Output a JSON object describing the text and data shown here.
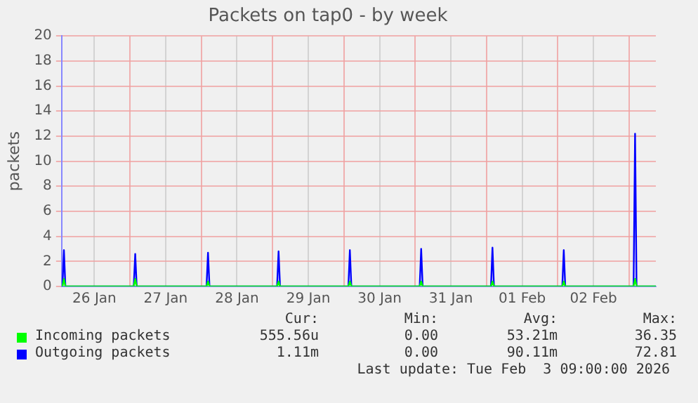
{
  "chart_data": {
    "type": "line",
    "title": "Packets on tap0 - by week",
    "ylabel": "packets",
    "x": [
      "2026-01-26T01:00",
      "2026-01-26T01:15",
      "2026-01-26T01:45",
      "2026-01-26T02:15",
      "2026-01-27T01:15",
      "2026-01-27T01:45",
      "2026-01-27T02:15",
      "2026-01-28T01:45",
      "2026-01-28T02:15",
      "2026-01-28T02:45",
      "2026-01-29T01:30",
      "2026-01-29T02:00",
      "2026-01-29T02:30",
      "2026-01-30T01:30",
      "2026-01-30T02:00",
      "2026-01-30T02:30",
      "2026-01-31T01:30",
      "2026-01-31T02:00",
      "2026-01-31T02:30",
      "2026-02-01T01:30",
      "2026-02-01T02:00",
      "2026-02-01T02:30",
      "2026-02-02T01:30",
      "2026-02-02T02:00",
      "2026-02-02T02:30",
      "2026-02-03T01:30",
      "2026-02-03T02:00",
      "2026-02-03T02:30",
      "2026-02-03T09:00"
    ],
    "series": [
      {
        "name": "Incoming packets",
        "color": "#00ff00",
        "values": [
          0,
          0,
          0.6,
          0,
          0,
          0.6,
          0,
          0,
          0.4,
          0,
          0,
          0.4,
          0,
          0,
          0.4,
          0,
          0,
          0.4,
          0,
          0,
          0.4,
          0,
          0,
          0.4,
          0,
          0,
          0.6,
          0,
          0
        ]
      },
      {
        "name": "Outgoing packets",
        "color": "#0000ff",
        "values": [
          0,
          0,
          2.9,
          0,
          0,
          2.6,
          0,
          0,
          2.7,
          0,
          0,
          2.8,
          0,
          0,
          2.9,
          0,
          0,
          3.0,
          0,
          0,
          3.1,
          0,
          0,
          2.9,
          0,
          0,
          12.2,
          0,
          0
        ]
      }
    ],
    "xlim": [
      "2026-01-26T01:00",
      "2026-02-03T09:00"
    ],
    "xticks": [
      {
        "value": "2026-01-26T12:00",
        "label": "26 Jan"
      },
      {
        "value": "2026-01-27T00:00",
        "label": null
      },
      {
        "value": "2026-01-27T12:00",
        "label": "27 Jan"
      },
      {
        "value": "2026-01-28T00:00",
        "label": null
      },
      {
        "value": "2026-01-28T12:00",
        "label": "28 Jan"
      },
      {
        "value": "2026-01-29T00:00",
        "label": null
      },
      {
        "value": "2026-01-29T12:00",
        "label": "29 Jan"
      },
      {
        "value": "2026-01-30T00:00",
        "label": null
      },
      {
        "value": "2026-01-30T12:00",
        "label": "30 Jan"
      },
      {
        "value": "2026-01-31T00:00",
        "label": null
      },
      {
        "value": "2026-01-31T12:00",
        "label": "31 Jan"
      },
      {
        "value": "2026-02-01T00:00",
        "label": null
      },
      {
        "value": "2026-02-01T12:00",
        "label": "01 Feb"
      },
      {
        "value": "2026-02-02T00:00",
        "label": null
      },
      {
        "value": "2026-02-02T12:00",
        "label": "02 Feb"
      },
      {
        "value": "2026-02-03T00:00",
        "label": null
      }
    ],
    "ylim": [
      0,
      20
    ],
    "yticks": [
      0,
      2,
      4,
      6,
      8,
      10,
      12,
      14,
      16,
      18,
      20
    ],
    "grid": true,
    "legend": "bottom",
    "marker": "none",
    "line_style": "solid",
    "annotations": [
      "Cur:",
      "Min:",
      "Avg:",
      "Max:",
      "555.56u",
      "0.00",
      "53.21m",
      "36.35",
      "1.11m",
      "0.00",
      "90.11m",
      "72.81",
      "Last update: Tue Feb  3 09:00:00 2026"
    ]
  }
}
